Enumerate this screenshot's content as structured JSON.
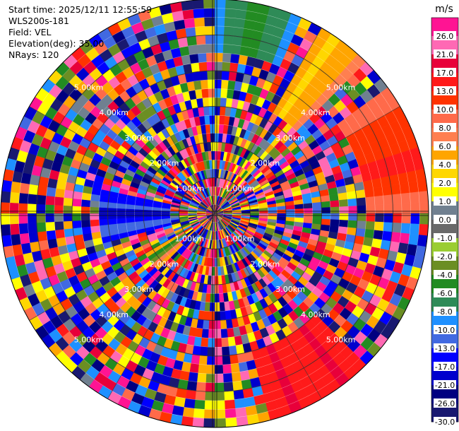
{
  "info": {
    "start_time": "Start time: 2025/12/11 12:55:59",
    "instrument": "WLS200s-181",
    "field": "Field: VEL",
    "elevation": "Elevation(deg): 35.00",
    "nrays": "NRays: 120"
  },
  "chart_data": {
    "type": "heatmap",
    "projection": "polar-ppi",
    "n_rays": 120,
    "n_gates": 24,
    "max_range_km": 6.0,
    "range_rings_km": [
      1,
      2,
      3,
      4,
      5
    ],
    "ring_label_suffix": "km",
    "ring_label_bearings_deg": [
      45,
      135,
      225,
      315
    ],
    "ring_labels": {
      "1": "1.00km",
      "2": "2.00km",
      "3": "3.00km",
      "4": "4.00km",
      "5": "5.00km"
    },
    "field": "VEL",
    "colorbar": {
      "unit": "m/s",
      "tick_labels": [
        "26.0",
        "21.0",
        "17.0",
        "13.0",
        "10.0",
        "8.0",
        "6.0",
        "4.0",
        "2.0",
        "1.0",
        "0.0",
        "-1.0",
        "-2.0",
        "-4.0",
        "-6.0",
        "-8.0",
        "-10.0",
        "-13.0",
        "-17.0",
        "-21.0",
        "-26.0",
        "-30.0"
      ],
      "colors": [
        "#ff1493",
        "#ff69b4",
        "#e8003a",
        "#ff1a1a",
        "#ff3300",
        "#ff6a4a",
        "#ff7f50",
        "#ffa500",
        "#ffd700",
        "#ffff00",
        "#708090",
        "#696969",
        "#9acd32",
        "#6b8e23",
        "#228b22",
        "#2e8b57",
        "#1e90ff",
        "#4169e1",
        "#0000ff",
        "#0000cd",
        "#000080",
        "#191970"
      ],
      "vmin": -30.0,
      "vmax": 30.0
    },
    "coherent_regions": [
      {
        "name": "north",
        "az_deg": [
          0,
          24
        ],
        "gates": [
          18,
          24
        ],
        "values": [
          -10,
          -8,
          -6,
          -6,
          -8,
          -10
        ]
      },
      {
        "name": "northeast",
        "az_deg": [
          30,
          45
        ],
        "gates": [
          13,
          24
        ],
        "values": [
          4,
          2,
          2,
          4,
          4,
          6
        ]
      },
      {
        "name": "east",
        "az_deg": [
          55,
          90
        ],
        "gates": [
          17,
          24
        ],
        "values": [
          8,
          10,
          10,
          13,
          10,
          8
        ]
      },
      {
        "name": "southeast",
        "az_deg": [
          135,
          165
        ],
        "gates": [
          16,
          24
        ],
        "values": [
          13,
          17,
          13,
          13,
          17,
          13
        ]
      },
      {
        "name": "west-near",
        "az_deg": [
          255,
          282
        ],
        "gates": [
          5,
          13
        ],
        "values": [
          -17,
          -13,
          -17,
          -21,
          -13,
          -17
        ]
      },
      {
        "name": "southwest",
        "az_deg": [
          225,
          240
        ],
        "gates": [
          5,
          9
        ],
        "values": [
          4,
          6,
          2,
          -4,
          -6,
          4
        ]
      }
    ]
  }
}
